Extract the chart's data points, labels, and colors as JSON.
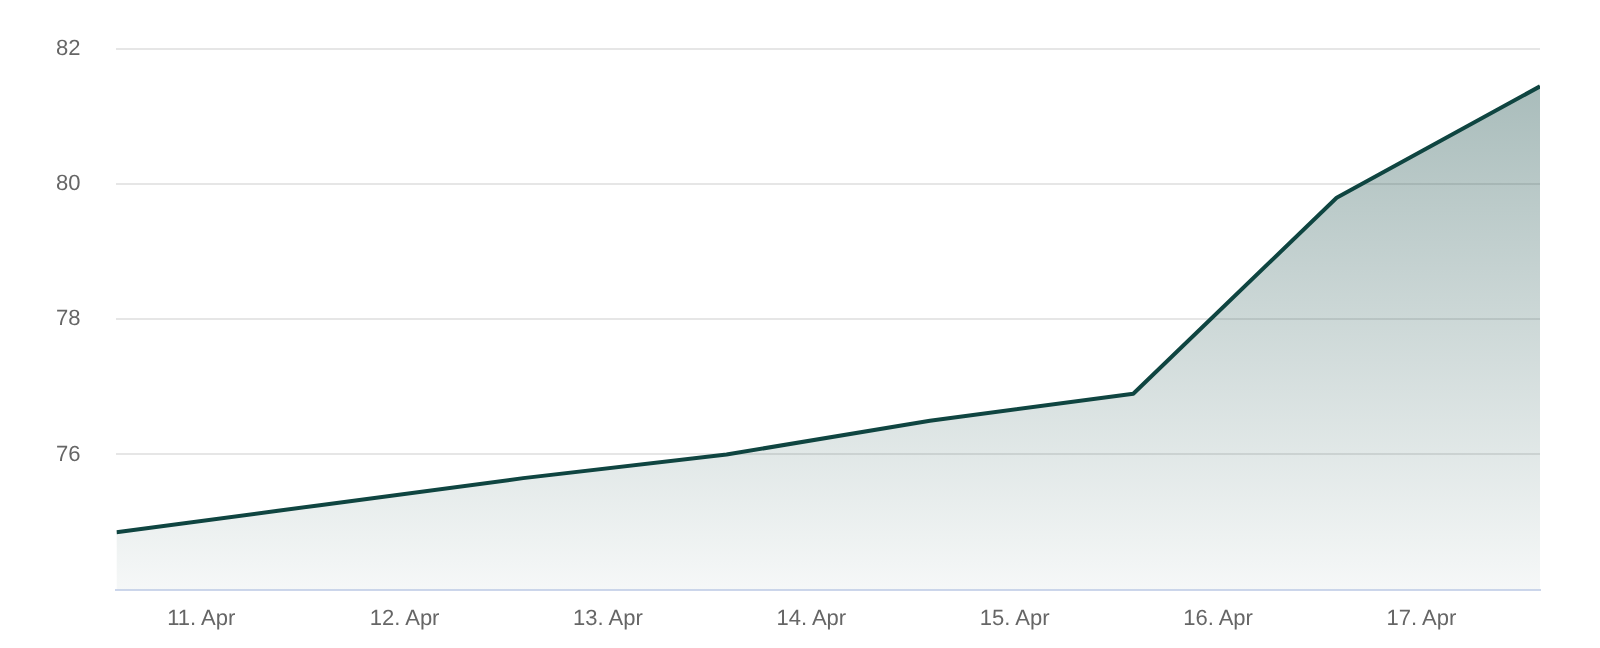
{
  "chart_data": {
    "type": "area",
    "x": [
      "--04-10T14:00",
      "--04-11T14:00",
      "--04-12T14:00",
      "--04-13T14:00",
      "--04-14T14:00",
      "--04-15T14:00",
      "--04-16T14:00",
      "--04-17T14:00"
    ],
    "series": [
      {
        "color": "#0f4541",
        "values": [
          74.85,
          75.25,
          75.65,
          76.0,
          76.5,
          76.9,
          79.8,
          81.45
        ]
      }
    ],
    "xlim": [
      "--04-10T14:00",
      "--04-17T14:00"
    ],
    "xticks": [
      {
        "value": "--04-11",
        "label": "11. Apr"
      },
      {
        "value": "--04-12",
        "label": "12. Apr"
      },
      {
        "value": "--04-13",
        "label": "13. Apr"
      },
      {
        "value": "--04-14",
        "label": "14. Apr"
      },
      {
        "value": "--04-15",
        "label": "15. Apr"
      },
      {
        "value": "--04-16",
        "label": "16. Apr"
      },
      {
        "value": "--04-17",
        "label": "17. Apr"
      }
    ],
    "ylim": [
      74,
      82
    ],
    "yticks": [
      {
        "value": 74,
        "label": null
      },
      76,
      78,
      80,
      82
    ],
    "grid": "y",
    "legend": false
  }
}
